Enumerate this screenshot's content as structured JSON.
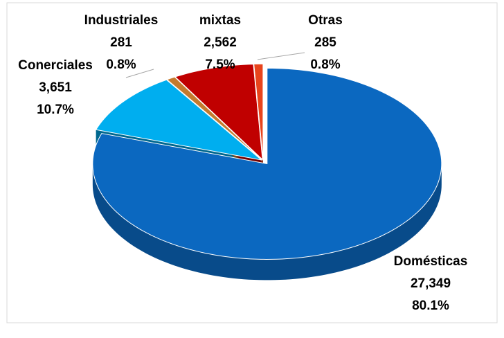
{
  "chart_data": {
    "type": "pie",
    "categories": [
      "Domésticas",
      "Conerciales",
      "Industriales",
      "mixtas",
      "Otras"
    ],
    "values": [
      27349,
      3651,
      281,
      2562,
      285
    ],
    "value_labels": [
      "27,349",
      "3,651",
      "281",
      "2,562",
      "285"
    ],
    "percents": [
      80.1,
      10.7,
      0.8,
      7.5,
      0.8
    ],
    "percent_labels": [
      "80.1%",
      "10.7%",
      "0.8%",
      "7.5%",
      "0.8%"
    ],
    "colors": [
      "#0b68c0",
      "#00aeef",
      "#c47a2e",
      "#c00000",
      "#e8441c"
    ]
  }
}
